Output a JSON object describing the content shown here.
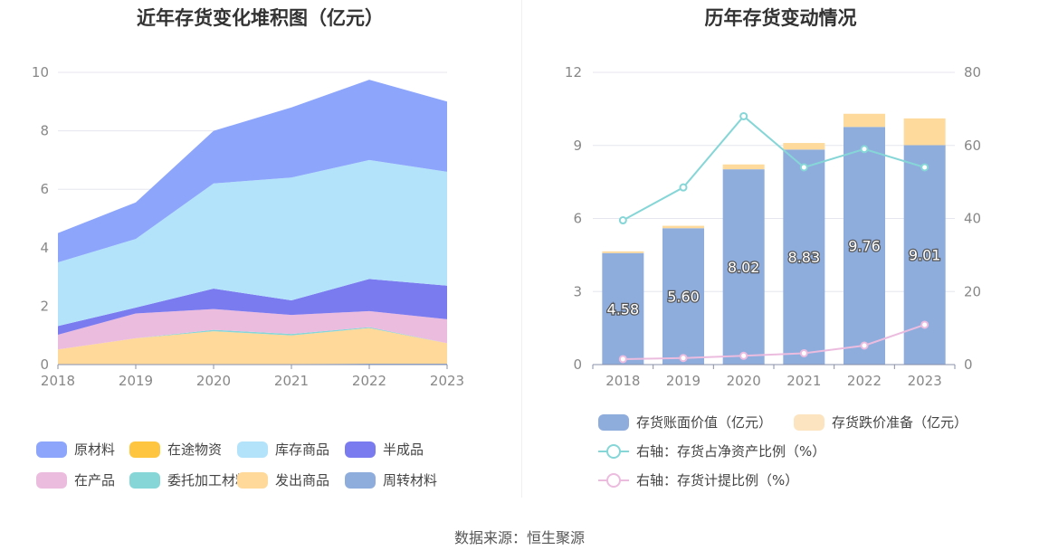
{
  "left_chart": {
    "title": "近年存货变化堆积图（亿元）",
    "legend": [
      {
        "name": "原材料",
        "color": "#8da6fb"
      },
      {
        "name": "在途物资",
        "color": "#fec640"
      },
      {
        "name": "库存商品",
        "color": "#b3e3fb"
      },
      {
        "name": "半成品",
        "color": "#7b7bf0"
      },
      {
        "name": "在产品",
        "color": "#ecbcdf"
      },
      {
        "name": "委托加工材料",
        "color": "#86d6d8"
      },
      {
        "name": "发出商品",
        "color": "#fed99a"
      },
      {
        "name": "周转材料",
        "color": "#8eaddd"
      }
    ]
  },
  "right_chart": {
    "title": "历年存货变动情况",
    "legend": [
      {
        "name": "存货账面价值（亿元）",
        "color": "#8eaddd",
        "kind": "bar"
      },
      {
        "name": "存货跌价准备（亿元）",
        "color": "#fde4c0",
        "kind": "bar"
      },
      {
        "name": "右轴：存货占净资产比例（%）",
        "color": "#86d6d8",
        "kind": "line"
      },
      {
        "name": "右轴：存货计提比例（%）",
        "color": "#ecbcdf",
        "kind": "line"
      }
    ]
  },
  "source": "数据来源：恒生聚源",
  "chart_data": [
    {
      "type": "area",
      "stacked": true,
      "title": "近年存货变化堆积图（亿元）",
      "categories": [
        "2018",
        "2019",
        "2020",
        "2021",
        "2022",
        "2023"
      ],
      "ylim": [
        0,
        10
      ],
      "yticks": [
        0,
        2,
        4,
        6,
        8,
        10
      ],
      "series": [
        {
          "name": "周转材料",
          "color": "#8eaddd",
          "values": [
            0.02,
            0.02,
            0.02,
            0.02,
            0.03,
            0.03
          ]
        },
        {
          "name": "发出商品",
          "color": "#fed99a",
          "values": [
            0.5,
            0.88,
            1.12,
            0.98,
            1.22,
            0.7
          ]
        },
        {
          "name": "委托加工材料",
          "color": "#86d6d8",
          "values": [
            0,
            0,
            0.05,
            0.05,
            0.03,
            0
          ]
        },
        {
          "name": "在途物资",
          "color": "#fec640",
          "values": [
            0,
            0,
            0,
            0,
            0,
            0
          ]
        },
        {
          "name": "在产品",
          "color": "#ecbcdf",
          "values": [
            0.5,
            0.85,
            0.71,
            0.65,
            0.55,
            0.82
          ]
        },
        {
          "name": "半成品",
          "color": "#7b7bf0",
          "values": [
            0.3,
            0.2,
            0.7,
            0.5,
            1.1,
            1.15
          ]
        },
        {
          "name": "库存商品",
          "color": "#b3e3fb",
          "values": [
            2.18,
            2.35,
            3.6,
            4.2,
            4.07,
            3.9
          ]
        },
        {
          "name": "原材料",
          "color": "#8da6fb",
          "values": [
            1.0,
            1.25,
            1.8,
            2.4,
            2.75,
            2.4
          ]
        }
      ]
    },
    {
      "type": "bar",
      "stacked": true,
      "title": "历年存货变动情况",
      "categories": [
        "2018",
        "2019",
        "2020",
        "2021",
        "2022",
        "2023"
      ],
      "ylim": [
        0,
        12
      ],
      "yticks": [
        0,
        3,
        6,
        9,
        12
      ],
      "y2lim": [
        0,
        80
      ],
      "y2ticks": [
        0,
        20,
        40,
        60,
        80
      ],
      "series": [
        {
          "name": "存货账面价值（亿元）",
          "color": "#8eaddd",
          "values": [
            4.58,
            5.6,
            8.02,
            8.83,
            9.76,
            9.01
          ],
          "labels": [
            "4.58",
            "5.60",
            "8.02",
            "8.83",
            "9.76",
            "9.01"
          ]
        },
        {
          "name": "存货跌价准备（亿元）",
          "color": "#fedb9d",
          "values": [
            0.07,
            0.1,
            0.2,
            0.27,
            0.54,
            1.1
          ]
        }
      ],
      "lines": [
        {
          "name": "右轴：存货占净资产比例（%）",
          "color": "#86d6d8",
          "axis": "right",
          "values": [
            39.5,
            48.5,
            68,
            54,
            59,
            54
          ]
        },
        {
          "name": "右轴：存货计提比例（%）",
          "color": "#ecbcdf",
          "axis": "right",
          "values": [
            1.5,
            1.8,
            2.4,
            3.1,
            5.2,
            10.9
          ]
        }
      ]
    }
  ]
}
